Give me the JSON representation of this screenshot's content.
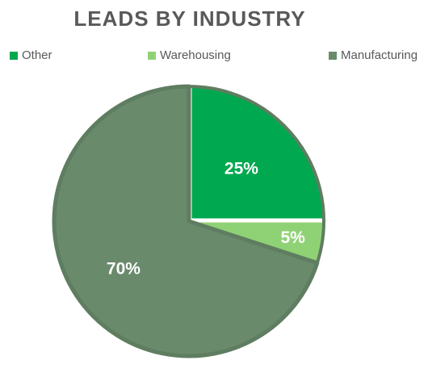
{
  "chart_data": {
    "type": "pie",
    "title": "LEADS BY INDUSTRY",
    "categories": [
      "Other",
      "Warehousing",
      "Manufacturing"
    ],
    "values": [
      25,
      5,
      70
    ],
    "labels": [
      "25%",
      "5%",
      "70%"
    ],
    "colors": [
      "#00A84F",
      "#8FD276",
      "#6A8A6C"
    ],
    "legend_position": "top"
  }
}
